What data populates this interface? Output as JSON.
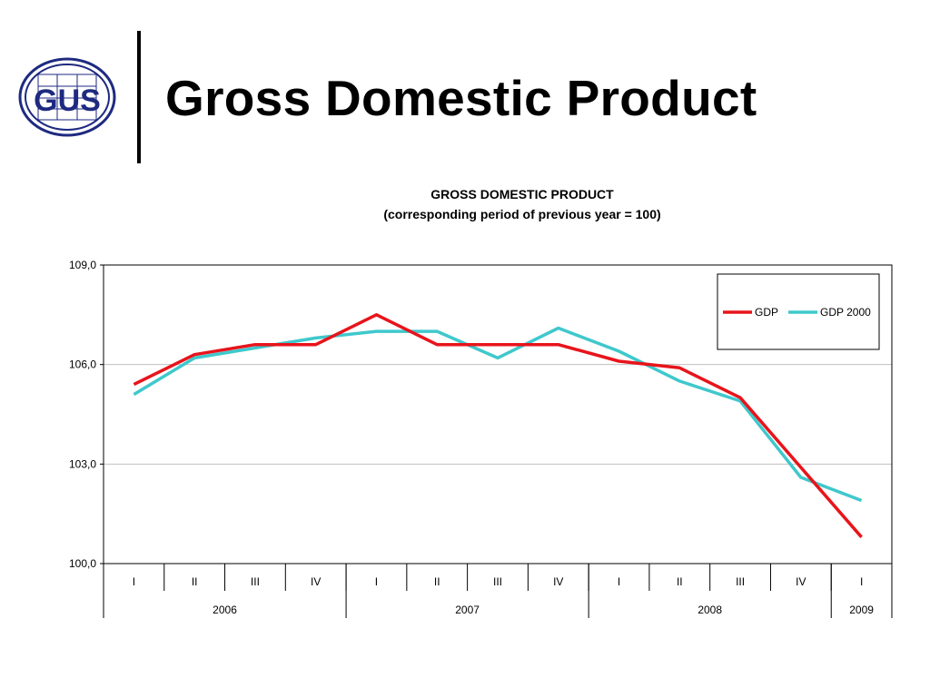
{
  "slide": {
    "title": "Gross Domestic Product",
    "logo_text": "GUS"
  },
  "chart_data": {
    "type": "line",
    "title": "GROSS DOMESTIC PRODUCT",
    "subtitle": "(corresponding period of previous year = 100)",
    "categories": [
      "I",
      "II",
      "III",
      "IV",
      "I",
      "II",
      "III",
      "IV",
      "I",
      "II",
      "III",
      "IV",
      "I"
    ],
    "year_groups": [
      {
        "label": "2006",
        "count": 4
      },
      {
        "label": "2007",
        "count": 4
      },
      {
        "label": "2008",
        "count": 4
      },
      {
        "label": "2009",
        "count": 1
      }
    ],
    "series": [
      {
        "name": "GDP",
        "color": "#e8141b",
        "values": [
          105.4,
          106.3,
          106.6,
          106.6,
          107.5,
          106.6,
          106.6,
          106.6,
          106.1,
          105.9,
          105.0,
          102.9,
          100.8
        ]
      },
      {
        "name": "GDP 2000",
        "color": "#3fc8cc",
        "values": [
          105.1,
          106.2,
          106.5,
          106.8,
          107.0,
          107.0,
          106.2,
          107.1,
          106.4,
          105.5,
          104.9,
          102.6,
          101.9
        ]
      }
    ],
    "ylim": [
      100.0,
      109.0
    ],
    "yticks": [
      "100,0",
      "103,0",
      "106,0",
      "109,0"
    ],
    "ytick_values": [
      100.0,
      103.0,
      106.0,
      109.0
    ],
    "grid": true,
    "legend_position": "top-right"
  }
}
